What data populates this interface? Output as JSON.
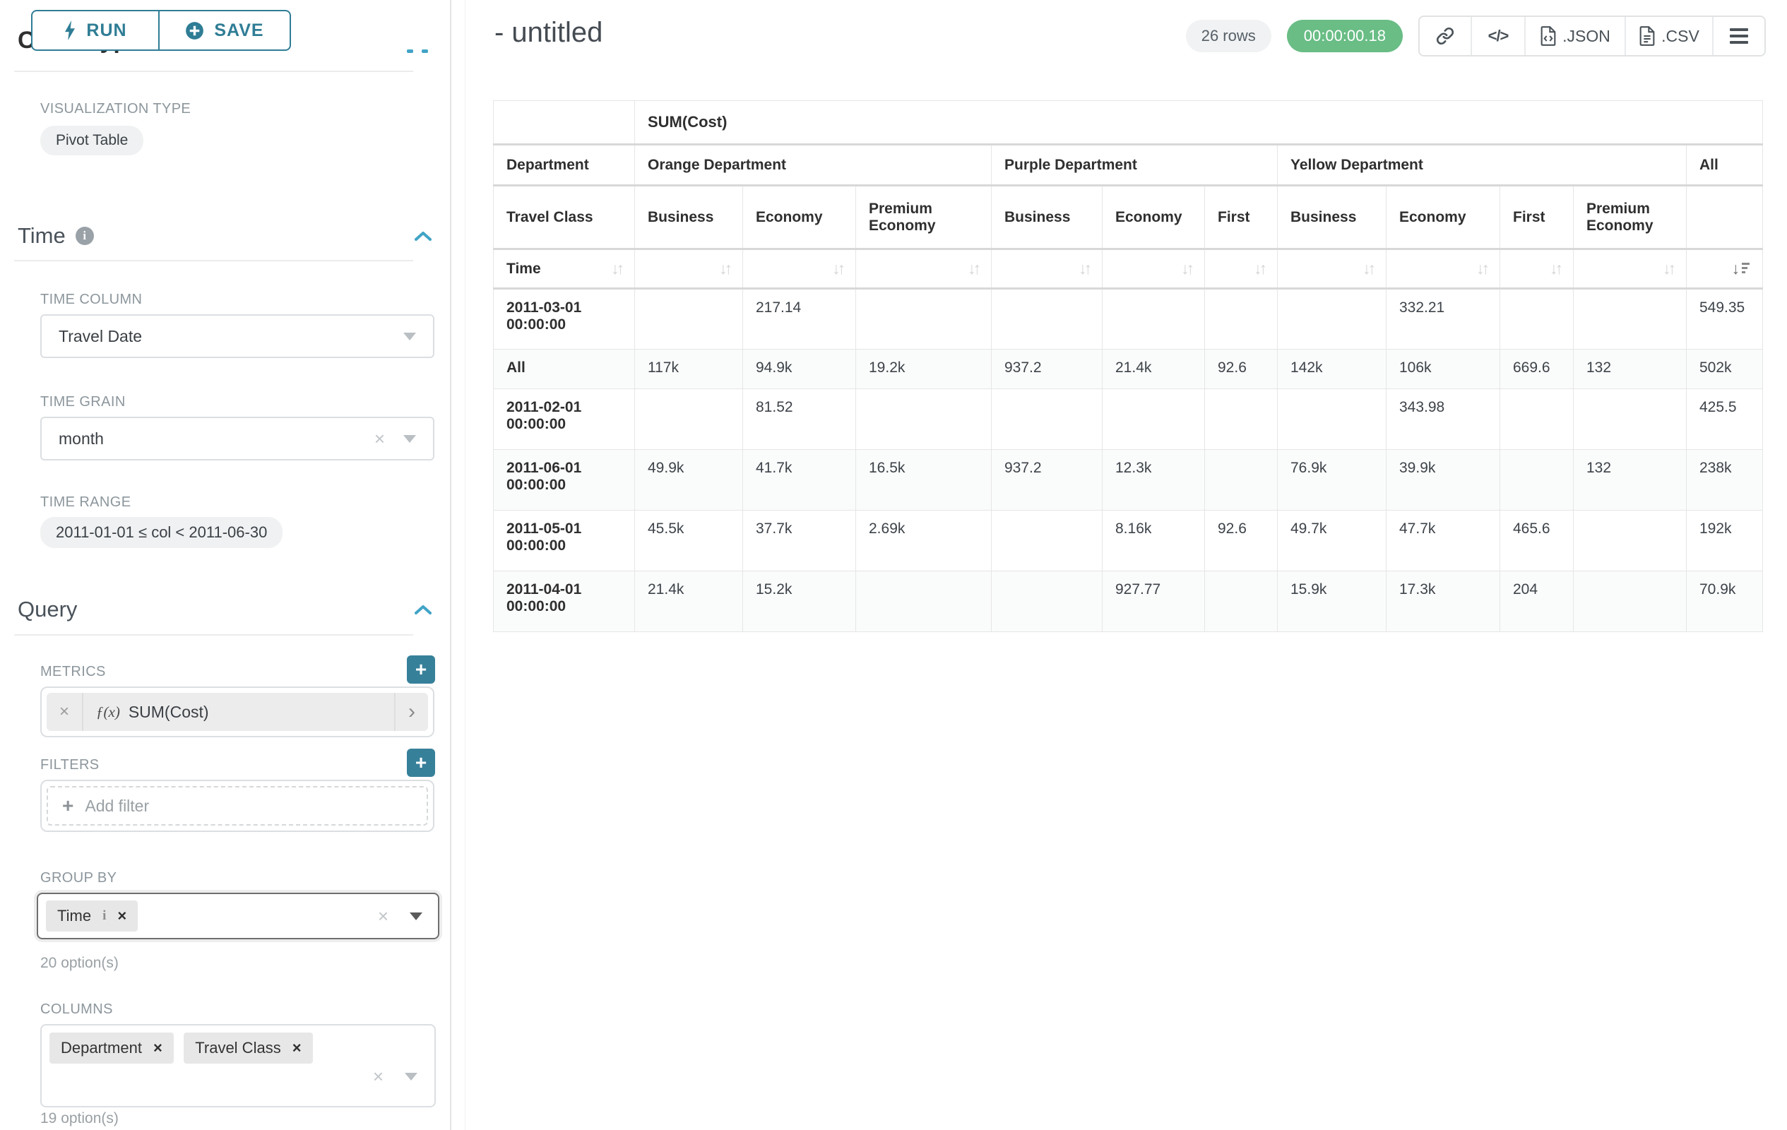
{
  "colors": {
    "accent": "#2f7d95",
    "accent_bright": "#41a4c6",
    "success_badge": "#69bd85"
  },
  "toolbar": {
    "run_label": "RUN",
    "save_label": "SAVE"
  },
  "sidebar": {
    "chart_type_heading": "Chart Type",
    "visualization": {
      "label": "VISUALIZATION TYPE",
      "value": "Pivot Table"
    },
    "time_section": {
      "title": "Time",
      "time_column": {
        "label": "TIME COLUMN",
        "value": "Travel Date"
      },
      "time_grain": {
        "label": "TIME GRAIN",
        "value": "month"
      },
      "time_range": {
        "label": "TIME RANGE",
        "value": "2011-01-01 ≤ col < 2011-06-30"
      }
    },
    "query_section": {
      "title": "Query",
      "metrics": {
        "label": "METRICS",
        "fx_prefix": "ƒ(x)",
        "metric": "SUM(Cost)"
      },
      "filters": {
        "label": "FILTERS",
        "placeholder": "Add filter"
      },
      "group_by": {
        "label": "GROUP BY",
        "tags": [
          "Time"
        ],
        "hint": "20 option(s)"
      },
      "columns": {
        "label": "COLUMNS",
        "tags": [
          "Department",
          "Travel Class"
        ],
        "hint": "19 option(s)"
      }
    }
  },
  "header": {
    "title": "- untitled",
    "row_count": "26 rows",
    "timer": "00:00:00.18",
    "export_json_label": ".JSON",
    "export_csv_label": ".CSV"
  },
  "pivot": {
    "metric_label": "SUM(Cost)",
    "dept_axis_label": "Department",
    "class_axis_label": "Travel Class",
    "time_axis_label": "Time",
    "groups": [
      {
        "label": "Orange Department",
        "classes": [
          "Business",
          "Economy",
          "Premium Economy"
        ]
      },
      {
        "label": "Purple Department",
        "classes": [
          "Business",
          "Economy",
          "First"
        ]
      },
      {
        "label": "Yellow Department",
        "classes": [
          "Business",
          "Economy",
          "First",
          "Premium Economy"
        ]
      },
      {
        "label": "All",
        "classes": [
          ""
        ]
      }
    ],
    "rows": [
      {
        "time": "2011-03-01 00:00:00",
        "values": [
          "",
          "217.14",
          "",
          "",
          "",
          "",
          "",
          "332.21",
          "",
          "",
          "549.35"
        ]
      },
      {
        "time": "All",
        "values": [
          "117k",
          "94.9k",
          "19.2k",
          "937.2",
          "21.4k",
          "92.6",
          "142k",
          "106k",
          "669.6",
          "132",
          "502k"
        ]
      },
      {
        "time": "2011-02-01 00:00:00",
        "values": [
          "",
          "81.52",
          "",
          "",
          "",
          "",
          "",
          "343.98",
          "",
          "",
          "425.5"
        ]
      },
      {
        "time": "2011-06-01 00:00:00",
        "values": [
          "49.9k",
          "41.7k",
          "16.5k",
          "937.2",
          "12.3k",
          "",
          "76.9k",
          "39.9k",
          "",
          "132",
          "238k"
        ]
      },
      {
        "time": "2011-05-01 00:00:00",
        "values": [
          "45.5k",
          "37.7k",
          "2.69k",
          "",
          "8.16k",
          "92.6",
          "49.7k",
          "47.7k",
          "465.6",
          "",
          "192k"
        ]
      },
      {
        "time": "2011-04-01 00:00:00",
        "values": [
          "21.4k",
          "15.2k",
          "",
          "",
          "927.77",
          "",
          "15.9k",
          "17.3k",
          "204",
          "",
          "70.9k"
        ]
      }
    ]
  }
}
